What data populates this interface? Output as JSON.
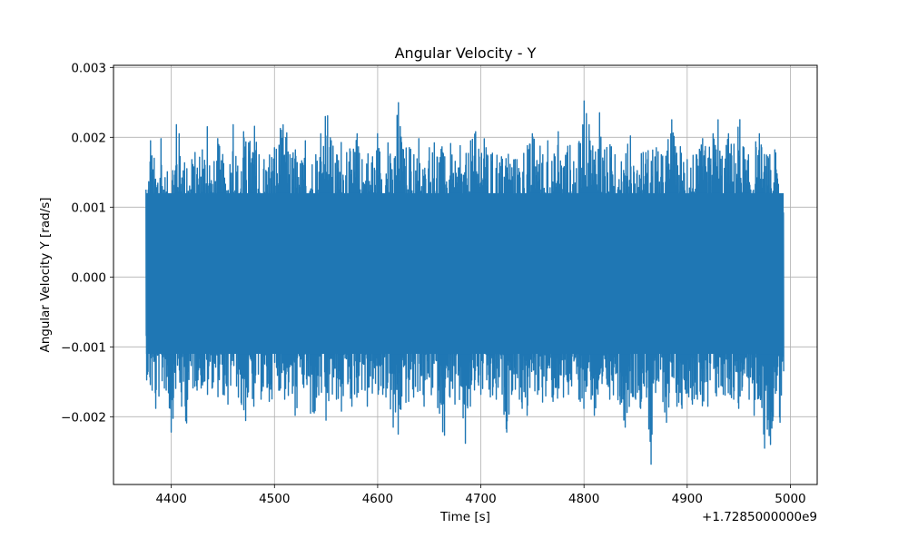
{
  "chart_data": {
    "type": "line",
    "title": "Angular Velocity - Y",
    "xlabel": "Time [s]",
    "ylabel": "Angular Velocity Y [rad/s]",
    "x_offset_label": "+1.7285000000e9",
    "xlim": [
      4344,
      5026
    ],
    "ylim": [
      -0.00297,
      0.00303
    ],
    "x_ticks": [
      4400,
      4500,
      4600,
      4700,
      4800,
      4900,
      5000
    ],
    "x_tick_labels": [
      "4400",
      "4500",
      "4600",
      "4700",
      "4800",
      "4900",
      "5000"
    ],
    "y_ticks": [
      -0.002,
      -0.001,
      0.0,
      0.001,
      0.002,
      0.003
    ],
    "y_tick_labels": [
      "−0.002",
      "−0.001",
      "0.000",
      "0.001",
      "0.002",
      "0.003"
    ],
    "grid": true,
    "line_color": "#1f77b4",
    "series": [
      {
        "x": [
          4375.5,
          4380,
          4385,
          4390,
          4395,
          4400,
          4405,
          4410,
          4415,
          4420,
          4425,
          4430,
          4435,
          4440,
          4445,
          4450,
          4455,
          4460,
          4465,
          4470,
          4475,
          4480,
          4485,
          4490,
          4495,
          4500,
          4505,
          4510,
          4515,
          4520,
          4525,
          4530,
          4535,
          4540,
          4545,
          4550,
          4555,
          4560,
          4565,
          4570,
          4575,
          4580,
          4585,
          4590,
          4595,
          4600,
          4605,
          4610,
          4615,
          4620,
          4625,
          4630,
          4635,
          4640,
          4645,
          4650,
          4655,
          4660,
          4665,
          4670,
          4675,
          4680,
          4685,
          4690,
          4695,
          4700,
          4705,
          4710,
          4715,
          4720,
          4725,
          4730,
          4735,
          4740,
          4745,
          4750,
          4755,
          4760,
          4765,
          4770,
          4775,
          4780,
          4785,
          4790,
          4795,
          4800,
          4805,
          4810,
          4815,
          4820,
          4825,
          4830,
          4835,
          4840,
          4845,
          4850,
          4855,
          4860,
          4865,
          4870,
          4875,
          4880,
          4885,
          4890,
          4895,
          4900,
          4905,
          4910,
          4915,
          4920,
          4925,
          4930,
          4935,
          4940,
          4945,
          4950,
          4955,
          4960,
          4965,
          4970,
          4975,
          4980,
          4985,
          4990,
          4993.5
        ],
        "y_max": [
          0.00125,
          0.00195,
          0.00165,
          0.00198,
          0.00145,
          0.00172,
          0.00218,
          0.00205,
          0.00155,
          0.00168,
          0.00192,
          0.00182,
          0.00215,
          0.00158,
          0.00198,
          0.00176,
          0.00168,
          0.00218,
          0.00165,
          0.00208,
          0.00192,
          0.00232,
          0.00175,
          0.00168,
          0.00195,
          0.00185,
          0.00212,
          0.00232,
          0.00175,
          0.00198,
          0.00162,
          0.00195,
          0.00182,
          0.00175,
          0.00205,
          0.00275,
          0.00195,
          0.00185,
          0.00208,
          0.00178,
          0.00188,
          0.00205,
          0.00168,
          0.00195,
          0.00172,
          0.00205,
          0.00185,
          0.00192,
          0.00168,
          0.00262,
          0.00182,
          0.00205,
          0.00175,
          0.00198,
          0.00168,
          0.00185,
          0.00192,
          0.00205,
          0.00172,
          0.00198,
          0.00165,
          0.00188,
          0.00175,
          0.00195,
          0.00208,
          0.00232,
          0.00185,
          0.00175,
          0.00198,
          0.00172,
          0.00205,
          0.00185,
          0.00168,
          0.00195,
          0.00188,
          0.00205,
          0.00218,
          0.00175,
          0.00195,
          0.00172,
          0.00208,
          0.00182,
          0.00205,
          0.00165,
          0.00195,
          0.00252,
          0.00218,
          0.00205,
          0.00235,
          0.00182,
          0.00198,
          0.00175,
          0.00205,
          0.00185,
          0.00202,
          0.00168,
          0.00195,
          0.00178,
          0.00205,
          0.00185,
          0.00175,
          0.00198,
          0.00225,
          0.00182,
          0.00205,
          0.00168,
          0.00192,
          0.00175,
          0.00198,
          0.00185,
          0.00205,
          0.00225,
          0.00182,
          0.00205,
          0.00195,
          0.00248,
          0.00185,
          0.00175,
          0.00198,
          0.00205,
          0.00182,
          0.00175,
          0.00182,
          0.00155,
          0.0015
        ],
        "y_min": [
          -0.00142,
          -0.00182,
          -0.00188,
          -0.00175,
          -0.00162,
          -0.00222,
          -0.00165,
          -0.00185,
          -0.00215,
          -0.00172,
          -0.00162,
          -0.00168,
          -0.00185,
          -0.00158,
          -0.00175,
          -0.00168,
          -0.00182,
          -0.00155,
          -0.00172,
          -0.00228,
          -0.00192,
          -0.00185,
          -0.00168,
          -0.00195,
          -0.00178,
          -0.00172,
          -0.00162,
          -0.00175,
          -0.00188,
          -0.00198,
          -0.00185,
          -0.00172,
          -0.00195,
          -0.00218,
          -0.00182,
          -0.00205,
          -0.00188,
          -0.00175,
          -0.00192,
          -0.00168,
          -0.00185,
          -0.00172,
          -0.00165,
          -0.00185,
          -0.00175,
          -0.00198,
          -0.00168,
          -0.00185,
          -0.00215,
          -0.00225,
          -0.00195,
          -0.00178,
          -0.00172,
          -0.00168,
          -0.00185,
          -0.00175,
          -0.00182,
          -0.00195,
          -0.0024,
          -0.00172,
          -0.00182,
          -0.00198,
          -0.00238,
          -0.00185,
          -0.00175,
          -0.00168,
          -0.00182,
          -0.00198,
          -0.00175,
          -0.00185,
          -0.00222,
          -0.00168,
          -0.00175,
          -0.00188,
          -0.00198,
          -0.00175,
          -0.00168,
          -0.00182,
          -0.00195,
          -0.00178,
          -0.00185,
          -0.00172,
          -0.00168,
          -0.00182,
          -0.00175,
          -0.00188,
          -0.00172,
          -0.00198,
          -0.00252,
          -0.00185,
          -0.00175,
          -0.00168,
          -0.00182,
          -0.00215,
          -0.00182,
          -0.00175,
          -0.00188,
          -0.00172,
          -0.00268,
          -0.00185,
          -0.00178,
          -0.00208,
          -0.00172,
          -0.00185,
          -0.00188,
          -0.00168,
          -0.00182,
          -0.00175,
          -0.00208,
          -0.00185,
          -0.00175,
          -0.00192,
          -0.00168,
          -0.00182,
          -0.00175,
          -0.00188,
          -0.00182,
          -0.00175,
          -0.00198,
          -0.00185,
          -0.00245,
          -0.00252,
          -0.00185,
          -0.00208,
          -0.00135
        ]
      }
    ]
  }
}
